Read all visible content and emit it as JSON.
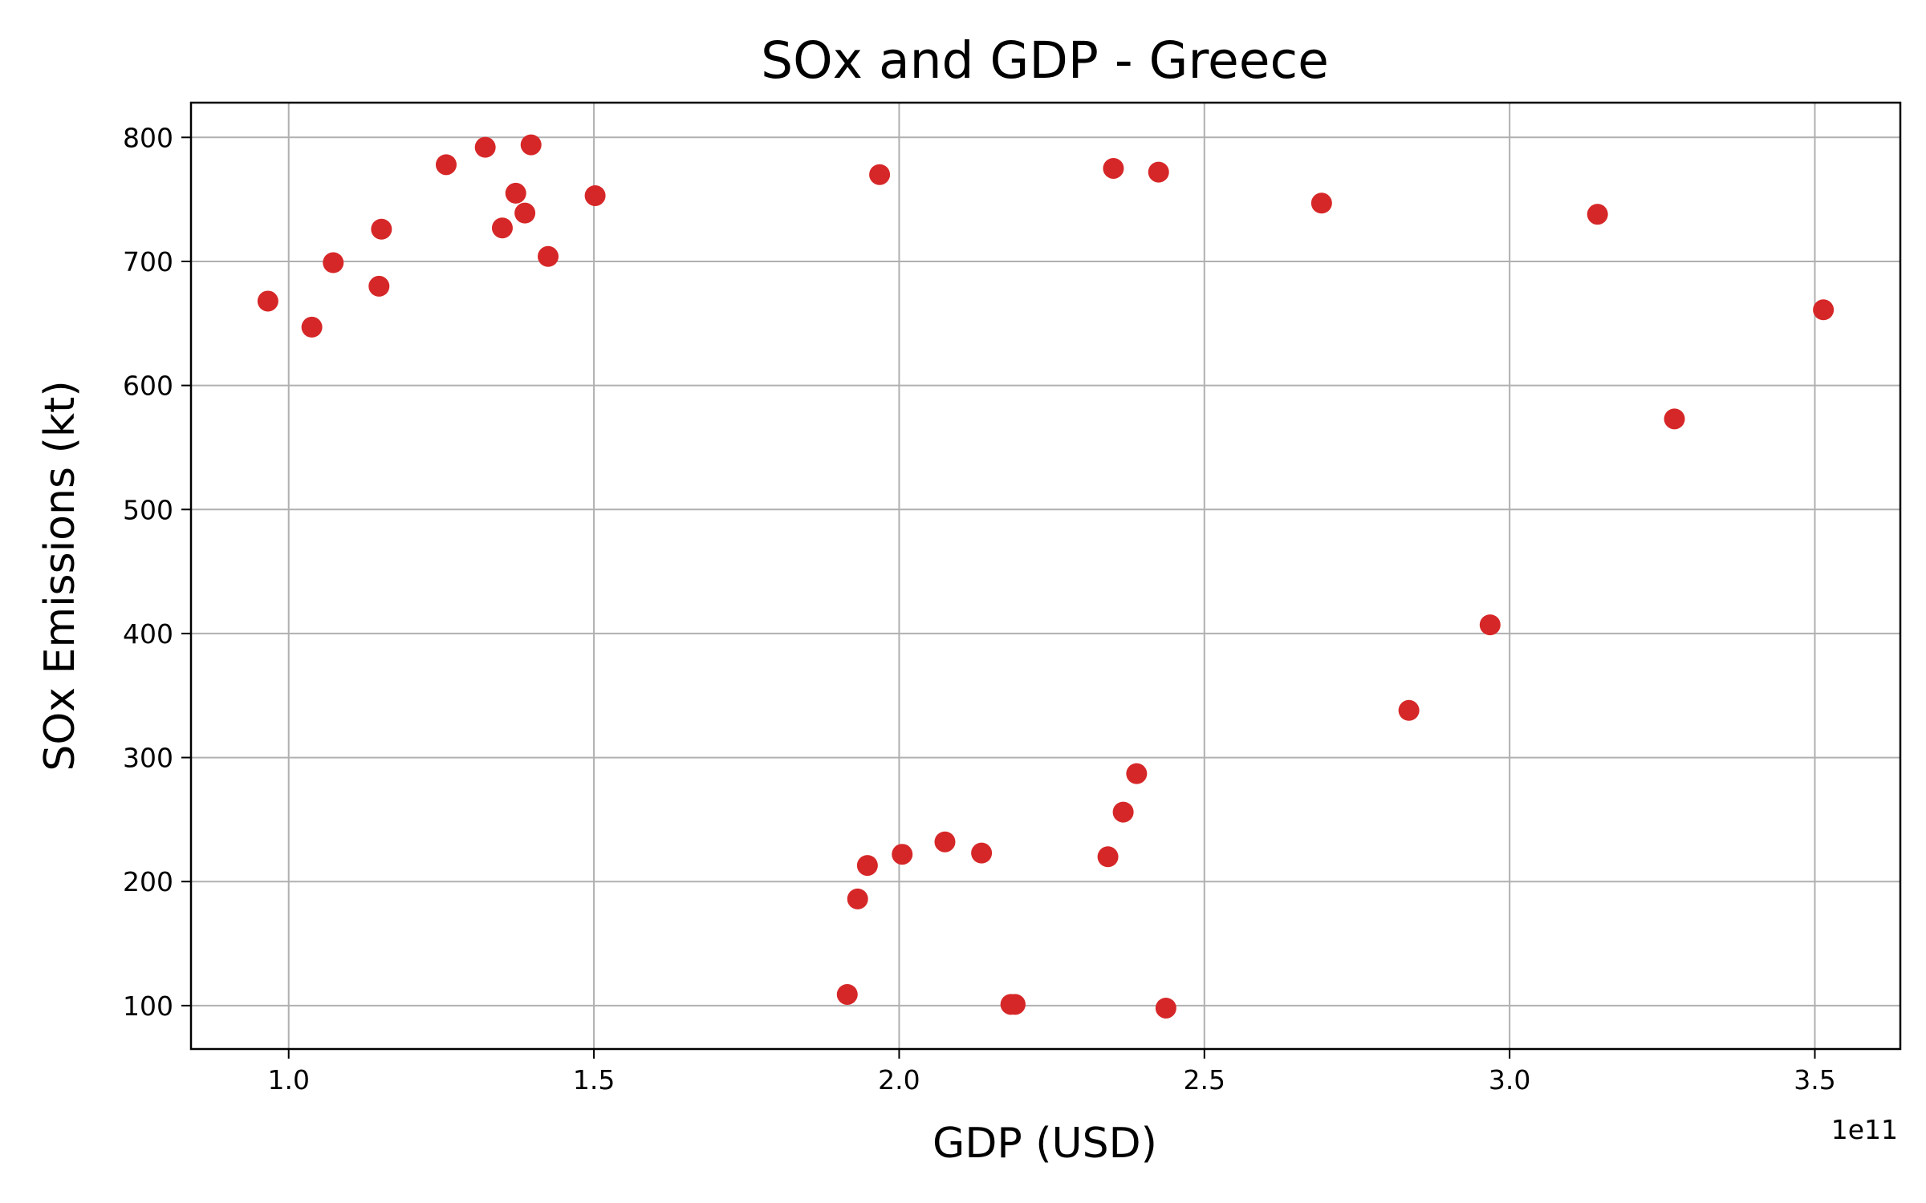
{
  "chart_data": {
    "type": "scatter",
    "title": "SOx and GDP - Greece",
    "xlabel": "GDP (USD)",
    "ylabel": "SOx Emissions (kt)",
    "x_offset_label": "1e11",
    "xlim": [
      0.84,
      3.64
    ],
    "ylim": [
      65,
      828
    ],
    "x_ticks": [
      1.0,
      1.5,
      2.0,
      2.5,
      3.0,
      3.5
    ],
    "x_tick_labels": [
      "1.0",
      "1.5",
      "2.0",
      "2.5",
      "3.0",
      "3.5"
    ],
    "y_ticks": [
      100,
      200,
      300,
      400,
      500,
      600,
      700,
      800
    ],
    "y_tick_labels": [
      "100",
      "200",
      "300",
      "400",
      "500",
      "600",
      "700",
      "800"
    ],
    "grid": true,
    "marker_color": "#d62728",
    "x_unit_note": "x values in units of 1e11 USD",
    "points": [
      {
        "x": 0.966,
        "y": 668
      },
      {
        "x": 1.038,
        "y": 647
      },
      {
        "x": 1.073,
        "y": 699
      },
      {
        "x": 1.148,
        "y": 680
      },
      {
        "x": 1.152,
        "y": 726
      },
      {
        "x": 1.258,
        "y": 778
      },
      {
        "x": 1.322,
        "y": 792
      },
      {
        "x": 1.35,
        "y": 727
      },
      {
        "x": 1.372,
        "y": 755
      },
      {
        "x": 1.387,
        "y": 739
      },
      {
        "x": 1.397,
        "y": 794
      },
      {
        "x": 1.425,
        "y": 704
      },
      {
        "x": 1.502,
        "y": 753
      },
      {
        "x": 1.968,
        "y": 770
      },
      {
        "x": 2.351,
        "y": 775
      },
      {
        "x": 2.425,
        "y": 772
      },
      {
        "x": 2.692,
        "y": 747
      },
      {
        "x": 3.144,
        "y": 738
      },
      {
        "x": 3.514,
        "y": 661
      },
      {
        "x": 3.27,
        "y": 573
      },
      {
        "x": 2.968,
        "y": 407
      },
      {
        "x": 2.835,
        "y": 338
      },
      {
        "x": 2.389,
        "y": 287
      },
      {
        "x": 2.367,
        "y": 256
      },
      {
        "x": 2.342,
        "y": 220
      },
      {
        "x": 2.135,
        "y": 223
      },
      {
        "x": 2.075,
        "y": 232
      },
      {
        "x": 2.005,
        "y": 222
      },
      {
        "x": 1.948,
        "y": 213
      },
      {
        "x": 1.932,
        "y": 186
      },
      {
        "x": 1.915,
        "y": 109
      },
      {
        "x": 2.183,
        "y": 101
      },
      {
        "x": 2.19,
        "y": 101
      },
      {
        "x": 2.437,
        "y": 98
      }
    ]
  }
}
